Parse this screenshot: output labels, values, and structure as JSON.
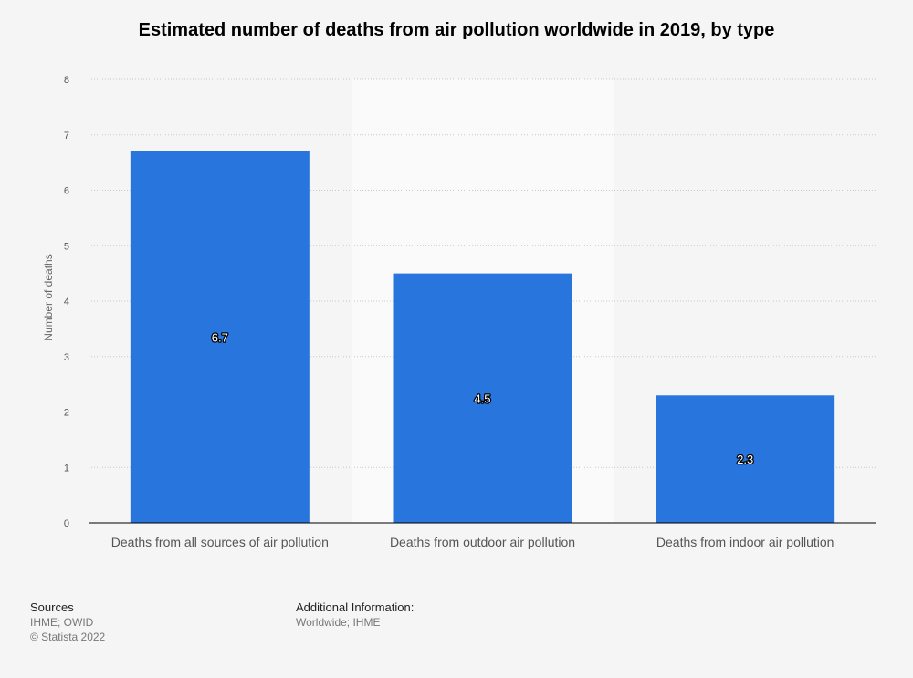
{
  "chart_data": {
    "type": "bar",
    "title": "Estimated number of deaths from air pollution worldwide in 2019, by type",
    "categories": [
      "Deaths from all sources of air pollution",
      "Deaths from outdoor air pollution",
      "Deaths from indoor air pollution"
    ],
    "values": [
      6.7,
      4.5,
      2.3
    ],
    "data_labels": [
      "6.7",
      "4.5",
      "2.3"
    ],
    "ylabel": "Number of deaths",
    "xlabel": "",
    "ylim": [
      0,
      8
    ],
    "yticks": [
      0,
      1,
      2,
      3,
      4,
      5,
      6,
      7,
      8
    ],
    "ytick_labels": [
      "0",
      "1",
      "2",
      "3",
      "4",
      "5",
      "6",
      "7",
      "8"
    ],
    "grid": true,
    "bar_color": "#2876dd"
  },
  "footer": {
    "sources_heading": "Sources",
    "sources_text": "IHME; OWID",
    "copyright": "© Statista 2022",
    "additional_heading": "Additional Information:",
    "additional_text": "Worldwide; IHME"
  }
}
